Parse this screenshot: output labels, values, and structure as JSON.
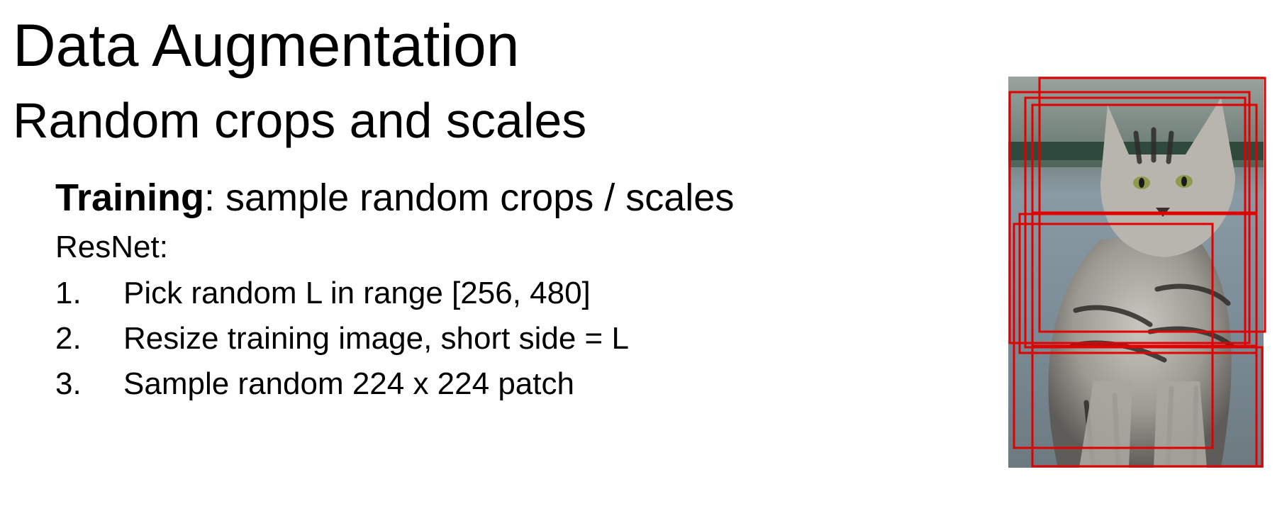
{
  "slide": {
    "title": "Data Augmentation",
    "subtitle": "Random crops and scales",
    "training_bold": "Training",
    "training_rest": ": sample random crops / scales",
    "resnet_label": "ResNet:",
    "steps": [
      {
        "num": "1.",
        "text": "Pick random L in range [256, 480]"
      },
      {
        "num": "2.",
        "text": "Resize training image, short side = L"
      },
      {
        "num": "3.",
        "text": "Sample random 224 x 224 patch"
      }
    ]
  },
  "image": {
    "subject": "cat-photo",
    "crop_box_color": "#e00000"
  },
  "colors": {
    "background": "#ffffff",
    "text": "#000000",
    "crop_box": "#e00000"
  }
}
